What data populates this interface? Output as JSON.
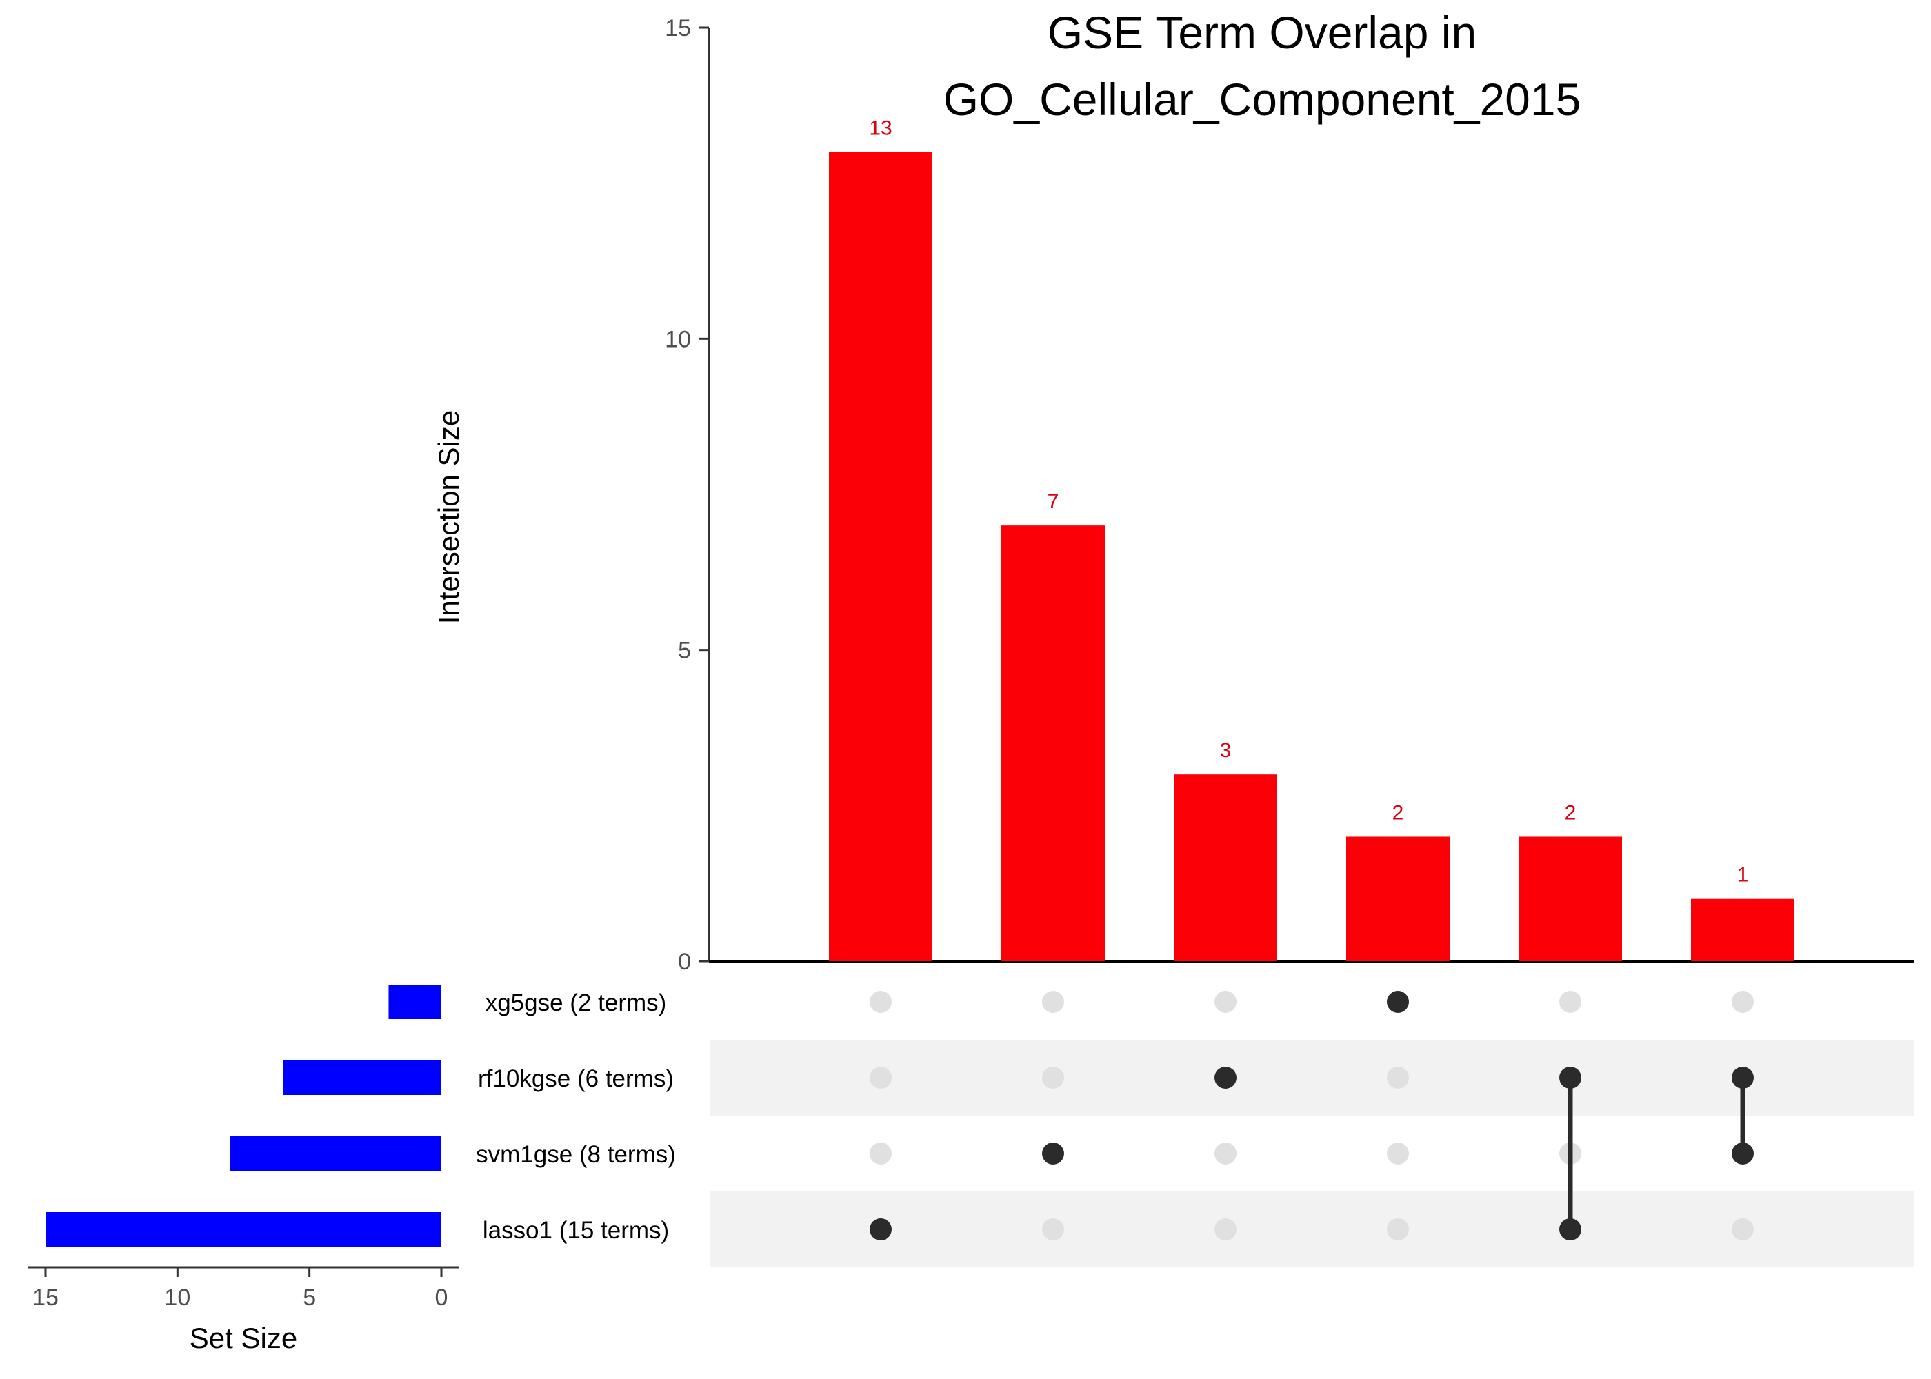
{
  "chart_data": {
    "type": "bar",
    "title_line1": "GSE Term Overlap in",
    "title_line2": "GO_Cellular_Component_2015",
    "ylabel": "Intersection Size",
    "ylim": [
      0,
      15
    ],
    "yticks": [
      0,
      5,
      10,
      15
    ],
    "intersection_values": [
      13,
      7,
      3,
      2,
      2,
      1
    ],
    "intersection_color": "#fb0007",
    "label_color": "#d9000f",
    "sets": [
      {
        "name": "xg5gse",
        "label": "xg5gse (2 terms)",
        "size": 2
      },
      {
        "name": "rf10kgse",
        "label": "rf10kgse (6 terms)",
        "size": 6
      },
      {
        "name": "svm1gse",
        "label": "svm1gse (8 terms)",
        "size": 8
      },
      {
        "name": "lasso1",
        "label": "lasso1 (15 terms)",
        "size": 15
      }
    ],
    "matrix": [
      [
        "lasso1"
      ],
      [
        "svm1gse"
      ],
      [
        "rf10kgse"
      ],
      [
        "xg5gse"
      ],
      [
        "rf10kgse",
        "lasso1"
      ],
      [
        "rf10kgse",
        "svm1gse"
      ]
    ],
    "set_size_label": "Set Size",
    "set_size_ticks": [
      15,
      10,
      5,
      0
    ],
    "set_size_max": 15,
    "set_color": "#0000ff",
    "dot_active_color": "#2b2b2b",
    "dot_inactive_color": "#e0e0e0",
    "stripe_color": "#f2f2f2",
    "grid": false
  }
}
